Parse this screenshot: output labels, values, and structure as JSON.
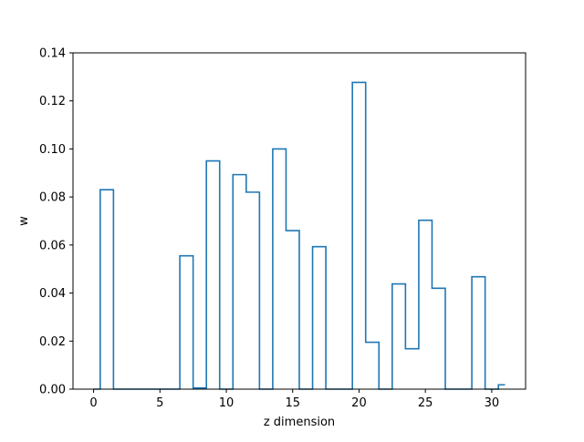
{
  "chart_data": {
    "type": "step",
    "title": "",
    "xlabel": "z dimension",
    "ylabel": "w",
    "xlim": [
      -1.55,
      32.55
    ],
    "ylim": [
      0,
      0.14
    ],
    "x_ticks": [
      0,
      5,
      10,
      15,
      20,
      25,
      30
    ],
    "x_tick_labels": [
      "0",
      "5",
      "10",
      "15",
      "20",
      "25",
      "30"
    ],
    "y_ticks": [
      0.0,
      0.02,
      0.04,
      0.06,
      0.08,
      0.1,
      0.12,
      0.14
    ],
    "y_tick_labels": [
      "0.00",
      "0.02",
      "0.04",
      "0.06",
      "0.08",
      "0.10",
      "0.12",
      "0.14"
    ],
    "step_where": "mid",
    "series": [
      {
        "color": "#1f77b4",
        "x": [
          0,
          1,
          2,
          3,
          4,
          5,
          6,
          7,
          8,
          9,
          10,
          11,
          12,
          13,
          14,
          15,
          16,
          17,
          18,
          19,
          20,
          21,
          22,
          23,
          24,
          25,
          26,
          27,
          28,
          29,
          30,
          31
        ],
        "values": [
          0,
          0.083,
          0,
          0,
          0,
          0,
          0,
          0.0555,
          0.0005,
          0.095,
          0,
          0.0893,
          0.082,
          0,
          0.1,
          0.066,
          0,
          0.0593,
          0,
          0,
          0.1277,
          0.0195,
          0,
          0.0438,
          0.0168,
          0.0703,
          0.042,
          0,
          0,
          0.0468,
          0,
          0.0018
        ]
      }
    ],
    "grid": false,
    "legend": "none"
  }
}
